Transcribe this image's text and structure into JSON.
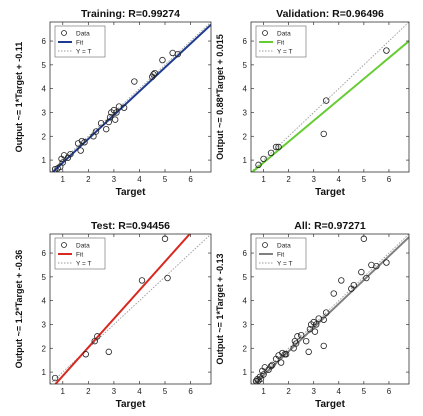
{
  "chart_data": [
    {
      "type": "scatter",
      "title": "Training: R=0.99274",
      "xlabel": "Target",
      "ylabel": "Output ~= 1*Target + -0.11",
      "xlim": [
        0.5,
        6.8
      ],
      "ylim": [
        0.5,
        6.8
      ],
      "xticks": [
        1,
        2,
        3,
        4,
        5,
        6
      ],
      "yticks": [
        1,
        2,
        3,
        4,
        5,
        6
      ],
      "fit": {
        "slope": 1.0,
        "intercept": -0.11,
        "color": "#1f3b8f"
      },
      "legend": {
        "placement": "top-left",
        "entries": [
          "Data",
          "Fit",
          "Y = T"
        ]
      },
      "points": [
        [
          0.7,
          0.62
        ],
        [
          0.8,
          0.65
        ],
        [
          0.9,
          0.72
        ],
        [
          0.95,
          1.05
        ],
        [
          1.0,
          0.9
        ],
        [
          1.05,
          1.2
        ],
        [
          1.2,
          1.1
        ],
        [
          1.3,
          1.25
        ],
        [
          1.6,
          1.7
        ],
        [
          1.7,
          1.4
        ],
        [
          1.75,
          1.8
        ],
        [
          1.85,
          1.75
        ],
        [
          2.2,
          2.0
        ],
        [
          2.3,
          2.2
        ],
        [
          2.5,
          2.55
        ],
        [
          2.7,
          2.3
        ],
        [
          2.8,
          2.6
        ],
        [
          2.85,
          2.8
        ],
        [
          2.9,
          3.0
        ],
        [
          3.0,
          3.1
        ],
        [
          3.05,
          2.7
        ],
        [
          3.1,
          3.0
        ],
        [
          3.2,
          3.25
        ],
        [
          3.4,
          3.2
        ],
        [
          3.8,
          4.3
        ],
        [
          4.5,
          4.5
        ],
        [
          4.55,
          4.6
        ],
        [
          4.6,
          4.65
        ],
        [
          4.9,
          5.2
        ],
        [
          5.3,
          5.5
        ],
        [
          5.5,
          5.45
        ]
      ]
    },
    {
      "type": "scatter",
      "title": "Validation: R=0.96496",
      "xlabel": "Target",
      "ylabel": "Output ~= 0.88*Target + 0.015",
      "xlim": [
        0.5,
        6.8
      ],
      "ylim": [
        0.5,
        6.8
      ],
      "xticks": [
        1,
        2,
        3,
        4,
        5,
        6
      ],
      "yticks": [
        1,
        2,
        3,
        4,
        5,
        6
      ],
      "fit": {
        "slope": 0.88,
        "intercept": 0.015,
        "color": "#66cc33"
      },
      "legend": {
        "placement": "top-left",
        "entries": [
          "Data",
          "Fit",
          "Y = T"
        ]
      },
      "points": [
        [
          0.8,
          0.8
        ],
        [
          1.0,
          1.05
        ],
        [
          1.3,
          1.3
        ],
        [
          1.5,
          1.55
        ],
        [
          1.6,
          1.55
        ],
        [
          3.4,
          2.1
        ],
        [
          3.5,
          3.5
        ],
        [
          5.9,
          5.6
        ]
      ]
    },
    {
      "type": "scatter",
      "title": "Test: R=0.94456",
      "xlabel": "Target",
      "ylabel": "Output ~= 1.2*Target + -0.36",
      "xlim": [
        0.5,
        6.8
      ],
      "ylim": [
        0.5,
        6.8
      ],
      "xticks": [
        1,
        2,
        3,
        4,
        5,
        6
      ],
      "yticks": [
        1,
        2,
        3,
        4,
        5,
        6
      ],
      "fit": {
        "slope": 1.2,
        "intercept": -0.36,
        "color": "#d9281f"
      },
      "legend": {
        "placement": "top-left",
        "entries": [
          "Data",
          "Fit",
          "Y = T"
        ]
      },
      "points": [
        [
          0.7,
          0.75
        ],
        [
          1.9,
          1.75
        ],
        [
          2.25,
          2.3
        ],
        [
          2.35,
          2.5
        ],
        [
          2.8,
          1.85
        ],
        [
          4.1,
          4.85
        ],
        [
          5.0,
          6.6
        ],
        [
          5.1,
          4.95
        ]
      ]
    },
    {
      "type": "scatter",
      "title": "All: R=0.97271",
      "xlabel": "Target",
      "ylabel": "Output ~= 1*Target + -0.13",
      "xlim": [
        0.5,
        6.8
      ],
      "ylim": [
        0.5,
        6.8
      ],
      "xticks": [
        1,
        2,
        3,
        4,
        5,
        6
      ],
      "yticks": [
        1,
        2,
        3,
        4,
        5,
        6
      ],
      "fit": {
        "slope": 1.0,
        "intercept": -0.13,
        "color": "#808080"
      },
      "legend": {
        "placement": "top-left",
        "entries": [
          "Data",
          "Fit",
          "Y = T"
        ]
      },
      "points": [
        [
          0.7,
          0.62
        ],
        [
          0.75,
          0.7
        ],
        [
          0.8,
          0.65
        ],
        [
          0.85,
          0.8
        ],
        [
          0.9,
          0.72
        ],
        [
          0.95,
          1.05
        ],
        [
          1.0,
          0.9
        ],
        [
          1.05,
          1.2
        ],
        [
          1.2,
          1.1
        ],
        [
          1.3,
          1.25
        ],
        [
          1.35,
          1.3
        ],
        [
          1.5,
          1.55
        ],
        [
          1.6,
          1.7
        ],
        [
          1.7,
          1.4
        ],
        [
          1.75,
          1.8
        ],
        [
          1.85,
          1.75
        ],
        [
          1.9,
          1.75
        ],
        [
          2.2,
          2.0
        ],
        [
          2.25,
          2.3
        ],
        [
          2.3,
          2.2
        ],
        [
          2.35,
          2.5
        ],
        [
          2.5,
          2.55
        ],
        [
          2.7,
          2.3
        ],
        [
          2.8,
          1.85
        ],
        [
          2.85,
          2.8
        ],
        [
          2.9,
          3.0
        ],
        [
          3.0,
          3.1
        ],
        [
          3.05,
          2.7
        ],
        [
          3.1,
          3.0
        ],
        [
          3.2,
          3.25
        ],
        [
          3.4,
          2.1
        ],
        [
          3.4,
          3.2
        ],
        [
          3.5,
          3.5
        ],
        [
          3.8,
          4.3
        ],
        [
          4.1,
          4.85
        ],
        [
          4.5,
          4.5
        ],
        [
          4.6,
          4.65
        ],
        [
          4.9,
          5.2
        ],
        [
          5.0,
          6.6
        ],
        [
          5.1,
          4.95
        ],
        [
          5.3,
          5.5
        ],
        [
          5.5,
          5.45
        ],
        [
          5.9,
          5.6
        ]
      ]
    }
  ]
}
